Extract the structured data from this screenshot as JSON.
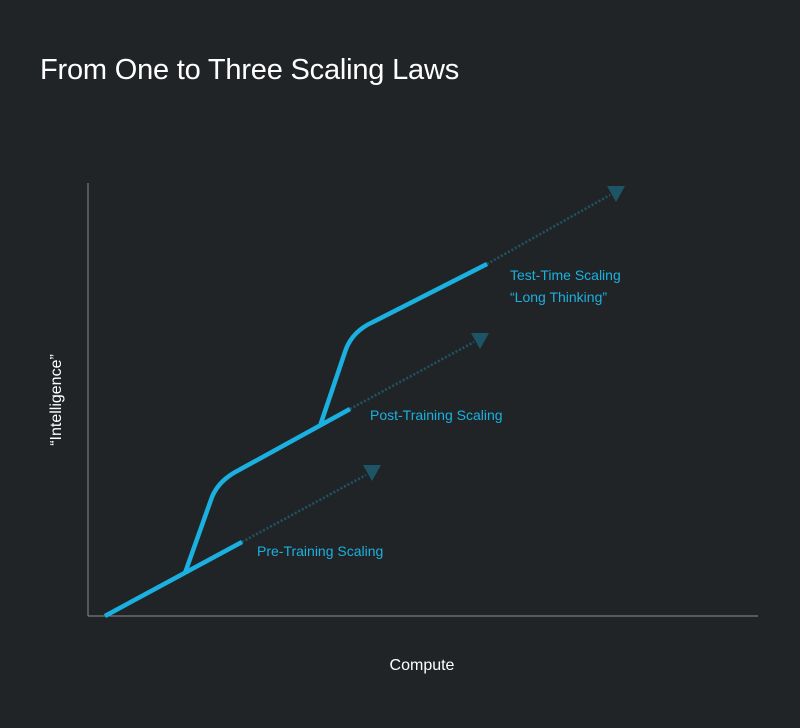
{
  "title": "From One to Three Scaling Laws",
  "axes": {
    "x_label": "Compute",
    "y_label": "“Intelligence”"
  },
  "curves": [
    {
      "label": "Pre-Training Scaling"
    },
    {
      "label": "Post-Training Scaling"
    },
    {
      "label_line1": "Test-Time Scaling",
      "label_line2": "“Long Thinking”"
    }
  ],
  "colors": {
    "background": "#212427",
    "curve": "#1ab0df",
    "projection": "#1d5566",
    "axis": "#8a8d90",
    "text": "#ffffff"
  }
}
